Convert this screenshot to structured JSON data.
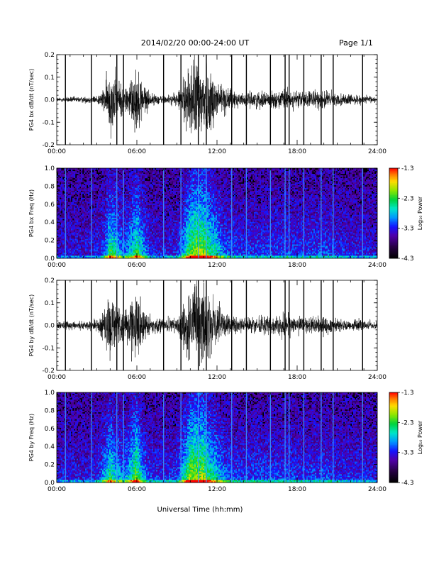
{
  "header": {
    "title": "2014/02/20   00:00-24:00 UT",
    "page": "Page 1/1"
  },
  "chart_data": [
    {
      "type": "line",
      "ylabel": "PG4 bx dB/dt (nT/sec)",
      "ylim": [
        -0.2,
        0.2
      ],
      "yticks": [
        "0.2",
        "0.1",
        "0.0",
        "-0.1",
        "-0.2"
      ],
      "xlim": [
        0,
        24
      ],
      "xticks": [
        "00:00",
        "06:00",
        "12:00",
        "18:00",
        "24:00"
      ],
      "envelope": {
        "x": [
          0,
          2,
          3,
          3.5,
          4,
          4.5,
          5,
          5.5,
          6,
          6.5,
          7,
          8,
          9,
          9.5,
          10,
          10.5,
          11,
          11.5,
          12,
          12.5,
          13,
          14,
          15,
          16,
          17,
          18,
          19,
          20,
          21,
          22,
          23,
          24
        ],
        "amplitude": [
          0.012,
          0.015,
          0.02,
          0.05,
          0.16,
          0.12,
          0.06,
          0.1,
          0.16,
          0.09,
          0.03,
          0.02,
          0.03,
          0.1,
          0.18,
          0.2,
          0.2,
          0.15,
          0.12,
          0.07,
          0.05,
          0.03,
          0.04,
          0.035,
          0.05,
          0.04,
          0.04,
          0.05,
          0.03,
          0.025,
          0.02,
          0.015
        ]
      },
      "spikes": [
        0.65,
        2.6,
        4.5,
        5.0,
        8.0,
        9.3,
        10.6,
        11.2,
        13.1,
        14.2,
        16.0,
        17.1,
        17.4,
        18.5,
        19.8,
        20.7,
        22.9
      ]
    },
    {
      "type": "heatmap",
      "ylabel": "PG4 bx Freq (Hz)",
      "ylim": [
        0,
        1.0
      ],
      "yticks": [
        "1.0",
        "0.8",
        "0.6",
        "0.4",
        "0.2",
        "0.0"
      ],
      "xlim": [
        0,
        24
      ],
      "xticks": [
        "00:00",
        "06:00",
        "12:00",
        "18:00",
        "24:00"
      ],
      "colorbar": {
        "label": "Log₁₀ Power",
        "ticks": [
          "-1.3",
          "-2.3",
          "-3.3",
          "-4.3"
        ],
        "range": [
          -4.3,
          -1.3
        ]
      },
      "spikes": [
        0.65,
        2.6,
        4.5,
        5.0,
        8.0,
        9.3,
        10.6,
        11.2,
        13.1,
        14.2,
        16.0,
        17.1,
        17.4,
        18.5,
        19.8,
        20.7,
        22.9
      ]
    },
    {
      "type": "line",
      "ylabel": "PG4 by dB/dt (nT/sec)",
      "ylim": [
        -0.2,
        0.2
      ],
      "yticks": [
        "0.2",
        "0.1",
        "0.0",
        "-0.1",
        "-0.2"
      ],
      "xlim": [
        0,
        24
      ],
      "xticks": [
        "00:00",
        "06:00",
        "12:00",
        "18:00",
        "24:00"
      ],
      "envelope": {
        "x": [
          0,
          2,
          3,
          3.5,
          4,
          4.5,
          5,
          5.5,
          6,
          6.5,
          7,
          8,
          9,
          9.5,
          10,
          10.5,
          11,
          11.5,
          12,
          12.5,
          13,
          14,
          15,
          16,
          17,
          18,
          19,
          20,
          21,
          22,
          23,
          24
        ],
        "amplitude": [
          0.02,
          0.02,
          0.03,
          0.08,
          0.15,
          0.1,
          0.07,
          0.12,
          0.18,
          0.08,
          0.04,
          0.03,
          0.04,
          0.12,
          0.2,
          0.2,
          0.2,
          0.14,
          0.12,
          0.07,
          0.05,
          0.04,
          0.05,
          0.04,
          0.05,
          0.04,
          0.04,
          0.05,
          0.03,
          0.03,
          0.025,
          0.02
        ]
      },
      "spikes": [
        0.65,
        2.6,
        4.5,
        5.0,
        8.0,
        9.3,
        10.6,
        11.2,
        13.1,
        14.2,
        16.0,
        17.1,
        17.4,
        18.5,
        19.8,
        20.7,
        22.9
      ]
    },
    {
      "type": "heatmap",
      "ylabel": "PG4 by Freq (Hz)",
      "ylim": [
        0,
        1.0
      ],
      "yticks": [
        "1.0",
        "0.8",
        "0.6",
        "0.4",
        "0.2",
        "0.0"
      ],
      "xlim": [
        0,
        24
      ],
      "xticks": [
        "00:00",
        "06:00",
        "12:00",
        "18:00",
        "24:00"
      ],
      "colorbar": {
        "label": "Log₁₀ Power",
        "ticks": [
          "-1.3",
          "-2.3",
          "-3.3",
          "-4.3"
        ],
        "range": [
          -4.3,
          -1.3
        ]
      },
      "spikes": [
        0.65,
        2.6,
        4.5,
        5.0,
        8.0,
        9.3,
        10.6,
        11.2,
        13.1,
        14.2,
        16.0,
        17.1,
        17.4,
        18.5,
        19.8,
        20.7,
        22.9
      ]
    }
  ],
  "xlabel": "Universal Time (hh:mm)"
}
